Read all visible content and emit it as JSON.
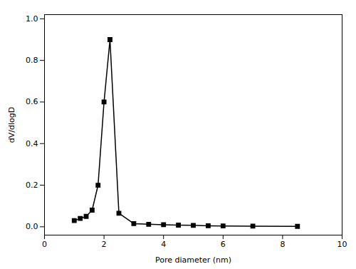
{
  "chart_data": {
    "type": "line",
    "x": [
      1.0,
      1.2,
      1.4,
      1.6,
      1.8,
      2.0,
      2.2,
      2.5,
      3.0,
      3.5,
      4.0,
      4.5,
      5.0,
      5.5,
      6.0,
      7.0,
      8.5
    ],
    "values": [
      0.03,
      0.04,
      0.05,
      0.08,
      0.2,
      0.6,
      0.9,
      0.065,
      0.015,
      0.012,
      0.01,
      0.008,
      0.007,
      0.005,
      0.004,
      0.003,
      0.002
    ],
    "xlabel": "Pore diameter (nm)",
    "ylabel": "dV/dlogD",
    "xlim": [
      0,
      10
    ],
    "ylim": [
      -0.04,
      1.02
    ],
    "xticks": [
      0,
      2,
      4,
      6,
      8,
      10
    ],
    "yticks": [
      {
        "value": 0,
        "label": "0.0"
      },
      0.2,
      0.4,
      0.6,
      0.8,
      {
        "value": 1,
        "label": "1.0"
      }
    ],
    "color": "#000000",
    "marker": "square"
  }
}
